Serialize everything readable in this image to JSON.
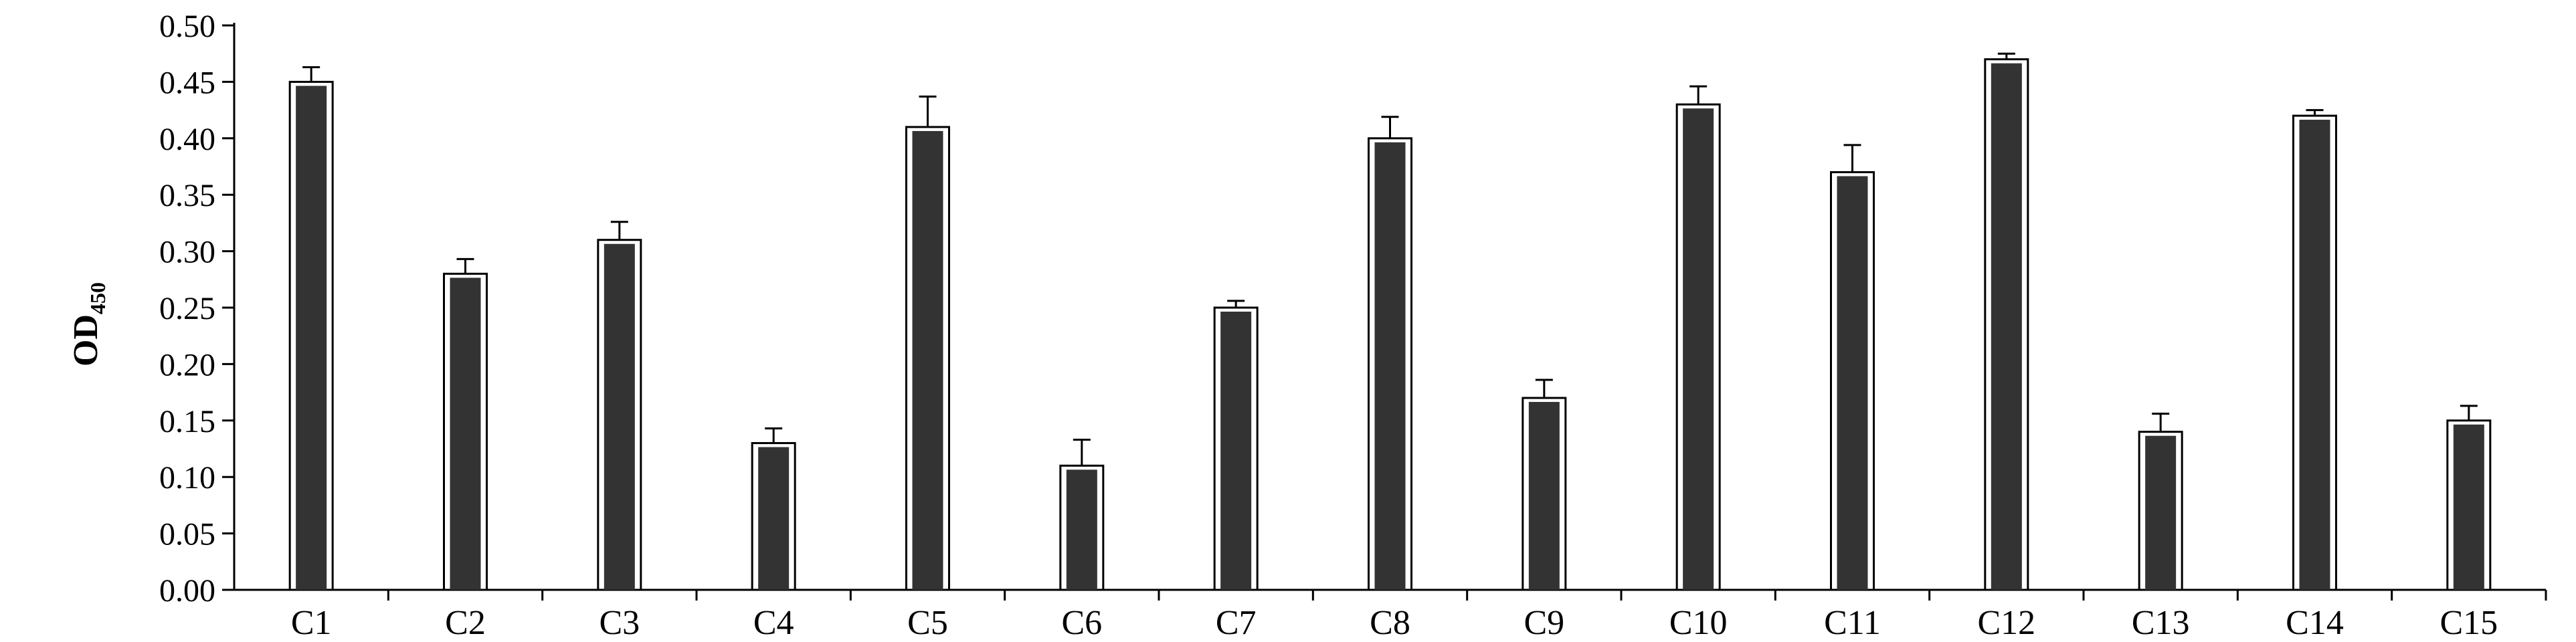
{
  "chart_data": {
    "type": "bar",
    "title": "",
    "ylabel": "OD",
    "ylabel_subscript": "450",
    "xlabel": "",
    "ylim": [
      0,
      0.5
    ],
    "yticks": [
      "0.00",
      "0.05",
      "0.10",
      "0.15",
      "0.20",
      "0.25",
      "0.30",
      "0.35",
      "0.40",
      "0.45",
      "0.50"
    ],
    "categories": [
      "C1",
      "C2",
      "C3",
      "C4",
      "C5",
      "C6",
      "C7",
      "C8",
      "C9",
      "C10",
      "C11",
      "C12",
      "C13",
      "C14",
      "C15"
    ],
    "values": [
      0.45,
      0.28,
      0.31,
      0.13,
      0.41,
      0.11,
      0.25,
      0.4,
      0.17,
      0.43,
      0.37,
      0.47,
      0.14,
      0.42,
      0.15
    ],
    "errors": [
      0.013,
      0.013,
      0.016,
      0.013,
      0.027,
      0.023,
      0.006,
      0.019,
      0.016,
      0.016,
      0.024,
      0.005,
      0.016,
      0.005,
      0.013
    ],
    "grid": false,
    "legend": "none",
    "colors": {
      "bar_fill": "#333333",
      "bar_outline": "#000000",
      "axis": "#000000"
    }
  }
}
